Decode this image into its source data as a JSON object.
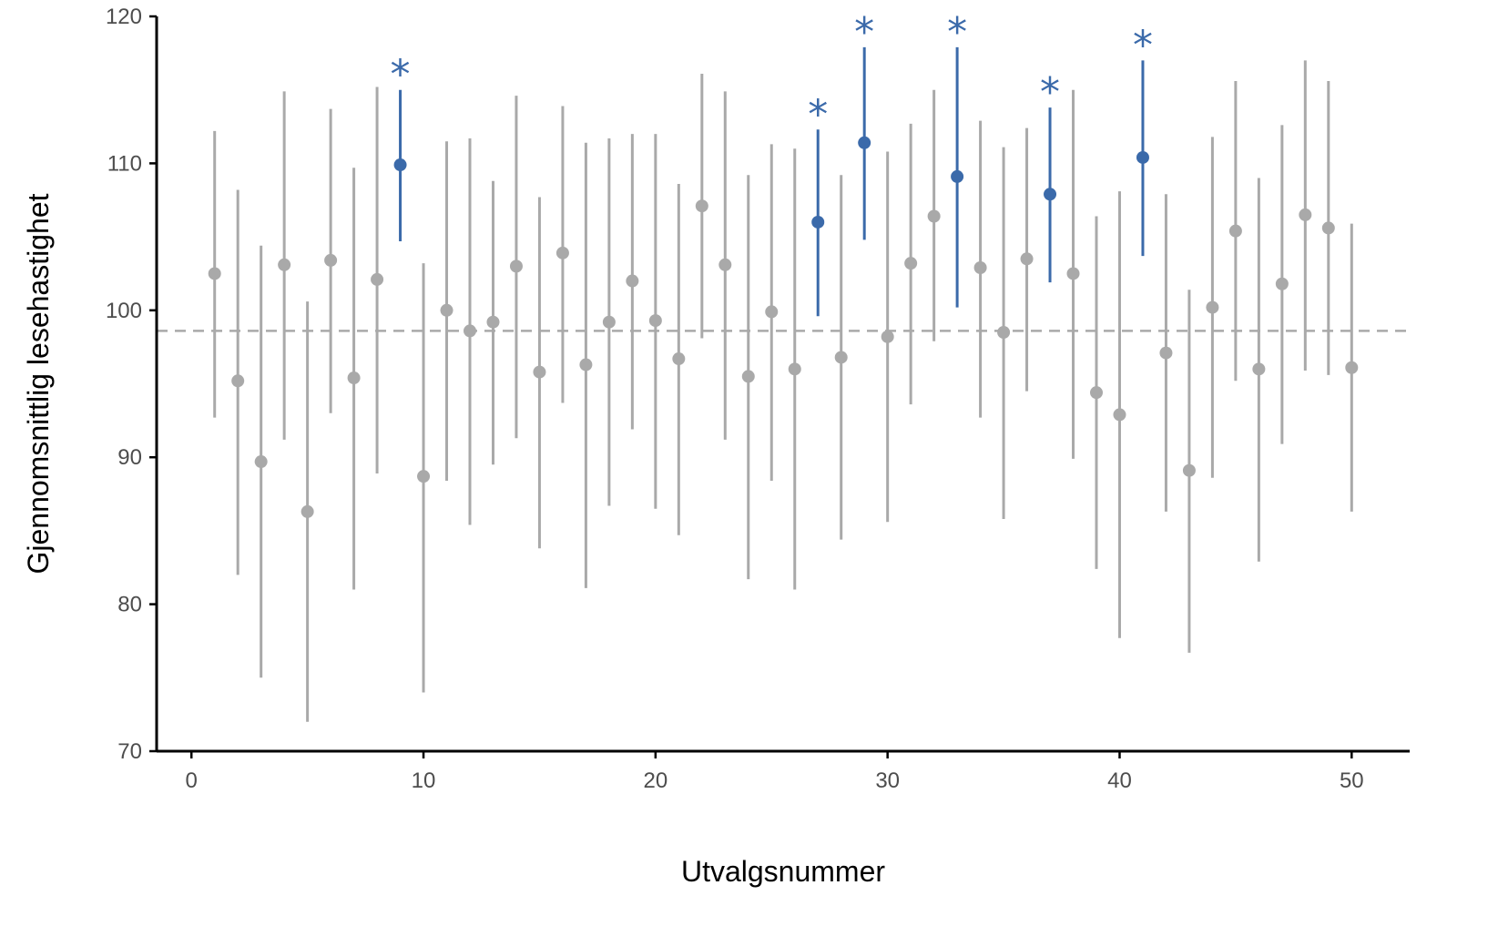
{
  "chart_data": {
    "type": "scatter",
    "title": "",
    "xlabel": "Utvalgsnummer",
    "ylabel": "Gjennomsnittlig lesehastighet",
    "xlim": [
      -1.5,
      52.5
    ],
    "ylim": [
      70,
      120
    ],
    "xticks": [
      0,
      10,
      20,
      30,
      40,
      50
    ],
    "yticks": [
      70,
      80,
      90,
      100,
      110,
      120
    ],
    "reference_line": {
      "y": 98.6,
      "style": "dashed"
    },
    "grid": false,
    "legend": "none",
    "highlight_marker": "*",
    "colors": {
      "normal": "#a9a9a9",
      "highlight": "#3b6aaa",
      "axis": "#000000"
    },
    "points": [
      {
        "x": 1,
        "mean": 102.5,
        "low": 92.7,
        "high": 112.2,
        "highlight": false
      },
      {
        "x": 2,
        "mean": 95.2,
        "low": 82.0,
        "high": 108.2,
        "highlight": false
      },
      {
        "x": 3,
        "mean": 89.7,
        "low": 75.0,
        "high": 104.4,
        "highlight": false
      },
      {
        "x": 4,
        "mean": 103.1,
        "low": 91.2,
        "high": 114.9,
        "highlight": false
      },
      {
        "x": 5,
        "mean": 86.3,
        "low": 72.0,
        "high": 100.6,
        "highlight": false
      },
      {
        "x": 6,
        "mean": 103.4,
        "low": 93.0,
        "high": 113.7,
        "highlight": false
      },
      {
        "x": 7,
        "mean": 95.4,
        "low": 81.0,
        "high": 109.7,
        "highlight": false
      },
      {
        "x": 8,
        "mean": 102.1,
        "low": 88.9,
        "high": 115.2,
        "highlight": false
      },
      {
        "x": 9,
        "mean": 109.9,
        "low": 104.7,
        "high": 115.0,
        "highlight": true
      },
      {
        "x": 10,
        "mean": 88.7,
        "low": 74.0,
        "high": 103.2,
        "highlight": false
      },
      {
        "x": 11,
        "mean": 100.0,
        "low": 88.4,
        "high": 111.5,
        "highlight": false
      },
      {
        "x": 12,
        "mean": 98.6,
        "low": 85.4,
        "high": 111.7,
        "highlight": false
      },
      {
        "x": 13,
        "mean": 99.2,
        "low": 89.5,
        "high": 108.8,
        "highlight": false
      },
      {
        "x": 14,
        "mean": 103.0,
        "low": 91.3,
        "high": 114.6,
        "highlight": false
      },
      {
        "x": 15,
        "mean": 95.8,
        "low": 83.8,
        "high": 107.7,
        "highlight": false
      },
      {
        "x": 16,
        "mean": 103.9,
        "low": 93.7,
        "high": 113.9,
        "highlight": false
      },
      {
        "x": 17,
        "mean": 96.3,
        "low": 81.1,
        "high": 111.4,
        "highlight": false
      },
      {
        "x": 18,
        "mean": 99.2,
        "low": 86.7,
        "high": 111.7,
        "highlight": false
      },
      {
        "x": 19,
        "mean": 102.0,
        "low": 91.9,
        "high": 112.0,
        "highlight": false
      },
      {
        "x": 20,
        "mean": 99.3,
        "low": 86.5,
        "high": 112.0,
        "highlight": false
      },
      {
        "x": 21,
        "mean": 96.7,
        "low": 84.7,
        "high": 108.6,
        "highlight": false
      },
      {
        "x": 22,
        "mean": 107.1,
        "low": 98.1,
        "high": 116.1,
        "highlight": false
      },
      {
        "x": 23,
        "mean": 103.1,
        "low": 91.2,
        "high": 114.9,
        "highlight": false
      },
      {
        "x": 24,
        "mean": 95.5,
        "low": 81.7,
        "high": 109.2,
        "highlight": false
      },
      {
        "x": 25,
        "mean": 99.9,
        "low": 88.4,
        "high": 111.3,
        "highlight": false
      },
      {
        "x": 26,
        "mean": 96.0,
        "low": 81.0,
        "high": 111.0,
        "highlight": false
      },
      {
        "x": 27,
        "mean": 106.0,
        "low": 99.6,
        "high": 112.3,
        "highlight": true
      },
      {
        "x": 28,
        "mean": 96.8,
        "low": 84.4,
        "high": 109.2,
        "highlight": false
      },
      {
        "x": 29,
        "mean": 111.4,
        "low": 104.8,
        "high": 117.9,
        "highlight": true
      },
      {
        "x": 30,
        "mean": 98.2,
        "low": 85.6,
        "high": 110.8,
        "highlight": false
      },
      {
        "x": 31,
        "mean": 103.2,
        "low": 93.6,
        "high": 112.7,
        "highlight": false
      },
      {
        "x": 32,
        "mean": 106.4,
        "low": 97.9,
        "high": 115.0,
        "highlight": false
      },
      {
        "x": 33,
        "mean": 109.1,
        "low": 100.2,
        "high": 117.9,
        "highlight": true
      },
      {
        "x": 34,
        "mean": 102.9,
        "low": 92.7,
        "high": 112.9,
        "highlight": false
      },
      {
        "x": 35,
        "mean": 98.5,
        "low": 85.8,
        "high": 111.1,
        "highlight": false
      },
      {
        "x": 36,
        "mean": 103.5,
        "low": 94.5,
        "high": 112.4,
        "highlight": false
      },
      {
        "x": 37,
        "mean": 107.9,
        "low": 101.9,
        "high": 113.8,
        "highlight": true
      },
      {
        "x": 38,
        "mean": 102.5,
        "low": 89.9,
        "high": 115.0,
        "highlight": false
      },
      {
        "x": 39,
        "mean": 94.4,
        "low": 82.4,
        "high": 106.4,
        "highlight": false
      },
      {
        "x": 40,
        "mean": 92.9,
        "low": 77.7,
        "high": 108.1,
        "highlight": false
      },
      {
        "x": 41,
        "mean": 110.4,
        "low": 103.7,
        "high": 117.0,
        "highlight": true
      },
      {
        "x": 42,
        "mean": 97.1,
        "low": 86.3,
        "high": 107.9,
        "highlight": false
      },
      {
        "x": 43,
        "mean": 89.1,
        "low": 76.7,
        "high": 101.4,
        "highlight": false
      },
      {
        "x": 44,
        "mean": 100.2,
        "low": 88.6,
        "high": 111.8,
        "highlight": false
      },
      {
        "x": 45,
        "mean": 105.4,
        "low": 95.2,
        "high": 115.6,
        "highlight": false
      },
      {
        "x": 46,
        "mean": 96.0,
        "low": 82.9,
        "high": 109.0,
        "highlight": false
      },
      {
        "x": 47,
        "mean": 101.8,
        "low": 90.9,
        "high": 112.6,
        "highlight": false
      },
      {
        "x": 48,
        "mean": 106.5,
        "low": 95.9,
        "high": 117.0,
        "highlight": false
      },
      {
        "x": 49,
        "mean": 105.6,
        "low": 95.6,
        "high": 115.6,
        "highlight": false
      },
      {
        "x": 50,
        "mean": 96.1,
        "low": 86.3,
        "high": 105.9,
        "highlight": false
      }
    ]
  }
}
